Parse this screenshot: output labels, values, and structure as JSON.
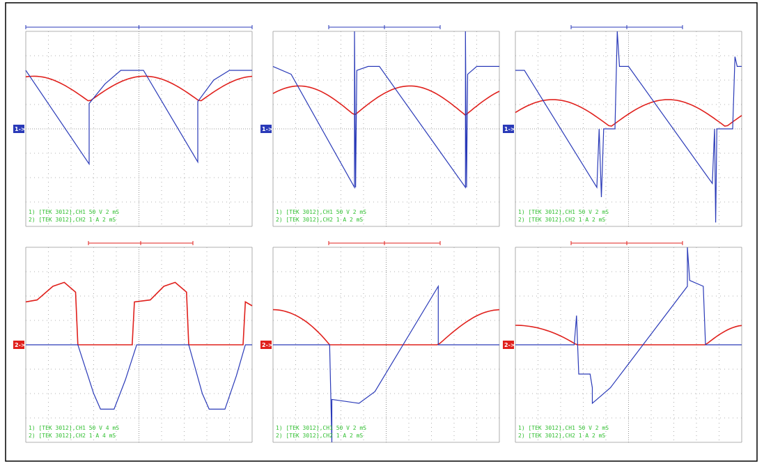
{
  "panels": [
    {
      "readout1": "1) [TEK 3012],CH1 50 V  2 mS",
      "readout2": "2) [TEK 3012],CH2 1 A  2 mS",
      "marker": "1->"
    },
    {
      "readout1": "1) [TEK 3012],CH1 50 V  2 mS",
      "readout2": "2) [TEK 3012],CH2 1 A  2 mS",
      "marker": "1->"
    },
    {
      "readout1": "1) [TEK 3012],CH1 50 V  2 mS",
      "readout2": "2) [TEK 3012],CH2 1 A  2 mS",
      "marker": "1->"
    },
    {
      "readout1": "1) [TEK 3012],CH1 50 V  4 mS",
      "readout2": "2) [TEK 3012],CH2 1 A  4 mS",
      "marker": "2->"
    },
    {
      "readout1": "1) [TEK 3012],CH1 50 V  2 mS",
      "readout2": "2) [TEK 3012],CH2 1 A  2 mS",
      "marker": "2->"
    },
    {
      "readout1": "1) [TEK 3012],CH1 50 V  2 mS",
      "readout2": "2) [TEK 3012],CH2 1 A  2 mS",
      "marker": "2->"
    }
  ]
}
